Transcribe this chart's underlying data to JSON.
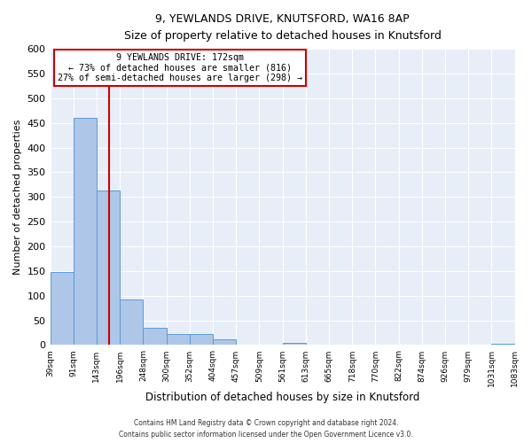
{
  "title": "9, YEWLANDS DRIVE, KNUTSFORD, WA16 8AP",
  "subtitle": "Size of property relative to detached houses in Knutsford",
  "xlabel": "Distribution of detached houses by size in Knutsford",
  "ylabel": "Number of detached properties",
  "bar_edges": [
    39,
    91,
    143,
    196,
    248,
    300,
    352,
    404,
    457,
    509,
    561,
    613,
    665,
    718,
    770,
    822,
    874,
    926,
    979,
    1031,
    1083
  ],
  "bar_heights": [
    148,
    460,
    313,
    93,
    35,
    23,
    23,
    12,
    0,
    0,
    5,
    0,
    0,
    0,
    0,
    0,
    0,
    0,
    0,
    3
  ],
  "bar_color": "#aec6e8",
  "bar_edge_color": "#5b9bd5",
  "vline_x": 172,
  "vline_color": "#cc0000",
  "annotation_title": "9 YEWLANDS DRIVE: 172sqm",
  "annotation_line1": "← 73% of detached houses are smaller (816)",
  "annotation_line2": "27% of semi-detached houses are larger (298) →",
  "annotation_box_edge_color": "#cc0000",
  "ylim": [
    0,
    600
  ],
  "yticks": [
    0,
    50,
    100,
    150,
    200,
    250,
    300,
    350,
    400,
    450,
    500,
    550,
    600
  ],
  "background_color": "#e8eef8",
  "grid_color": "#ffffff",
  "footer_line1": "Contains HM Land Registry data © Crown copyright and database right 2024.",
  "footer_line2": "Contains public sector information licensed under the Open Government Licence v3.0."
}
